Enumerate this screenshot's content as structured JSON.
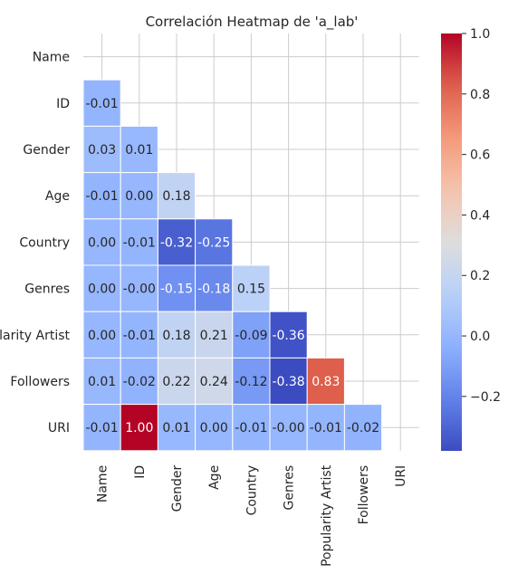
{
  "chart_data": {
    "type": "heatmap",
    "title": "Correlación Heatmap de 'a_lab'",
    "row_labels": [
      "Name",
      "ID",
      "Gender",
      "Age",
      "Country",
      "Genres",
      "Popularity Artist",
      "Followers",
      "URI"
    ],
    "col_labels": [
      "Name",
      "ID",
      "Gender",
      "Age",
      "Country",
      "Genres",
      "Popularity Artist",
      "Followers",
      "URI"
    ],
    "mask": "upper-triangle",
    "values": [
      [
        null,
        null,
        null,
        null,
        null,
        null,
        null,
        null,
        null
      ],
      [
        -0.01,
        null,
        null,
        null,
        null,
        null,
        null,
        null,
        null
      ],
      [
        0.03,
        0.01,
        null,
        null,
        null,
        null,
        null,
        null,
        null
      ],
      [
        -0.01,
        0.0,
        0.18,
        null,
        null,
        null,
        null,
        null,
        null
      ],
      [
        0.0,
        -0.01,
        -0.32,
        -0.25,
        null,
        null,
        null,
        null,
        null
      ],
      [
        0.0,
        -0.0,
        -0.15,
        -0.18,
        0.15,
        null,
        null,
        null,
        null
      ],
      [
        0.0,
        -0.01,
        0.18,
        0.21,
        -0.09,
        -0.36,
        null,
        null,
        null
      ],
      [
        0.01,
        -0.02,
        0.22,
        0.24,
        -0.12,
        -0.38,
        0.83,
        null,
        null
      ],
      [
        -0.01,
        1.0,
        0.01,
        0.0,
        -0.01,
        -0.0,
        -0.01,
        -0.02,
        null
      ]
    ],
    "cell_labels": [
      [],
      [
        "-0.01"
      ],
      [
        "0.03",
        "0.01"
      ],
      [
        "-0.01",
        "0.00",
        "0.18"
      ],
      [
        "0.00",
        "-0.01",
        "-0.32",
        "-0.25"
      ],
      [
        "0.00",
        "-0.00",
        "-0.15",
        "-0.18",
        "0.15"
      ],
      [
        "0.00",
        "-0.01",
        "0.18",
        "0.21",
        "-0.09",
        "-0.36"
      ],
      [
        "0.01",
        "-0.02",
        "0.22",
        "0.24",
        "-0.12",
        "-0.38",
        "0.83"
      ],
      [
        "-0.01",
        "1.00",
        "0.01",
        "0.00",
        "-0.01",
        "-0.00",
        "-0.01",
        "-0.02"
      ]
    ],
    "colormap": "coolwarm",
    "colorbar": {
      "vmin": -0.38,
      "vmax": 1.0,
      "ticks": [
        -0.2,
        0.0,
        0.2,
        0.4,
        0.6,
        0.8,
        1.0
      ],
      "tick_labels": [
        "−0.2",
        "0.0",
        "0.2",
        "0.4",
        "0.6",
        "0.8",
        "1.0"
      ]
    },
    "grid": true
  }
}
